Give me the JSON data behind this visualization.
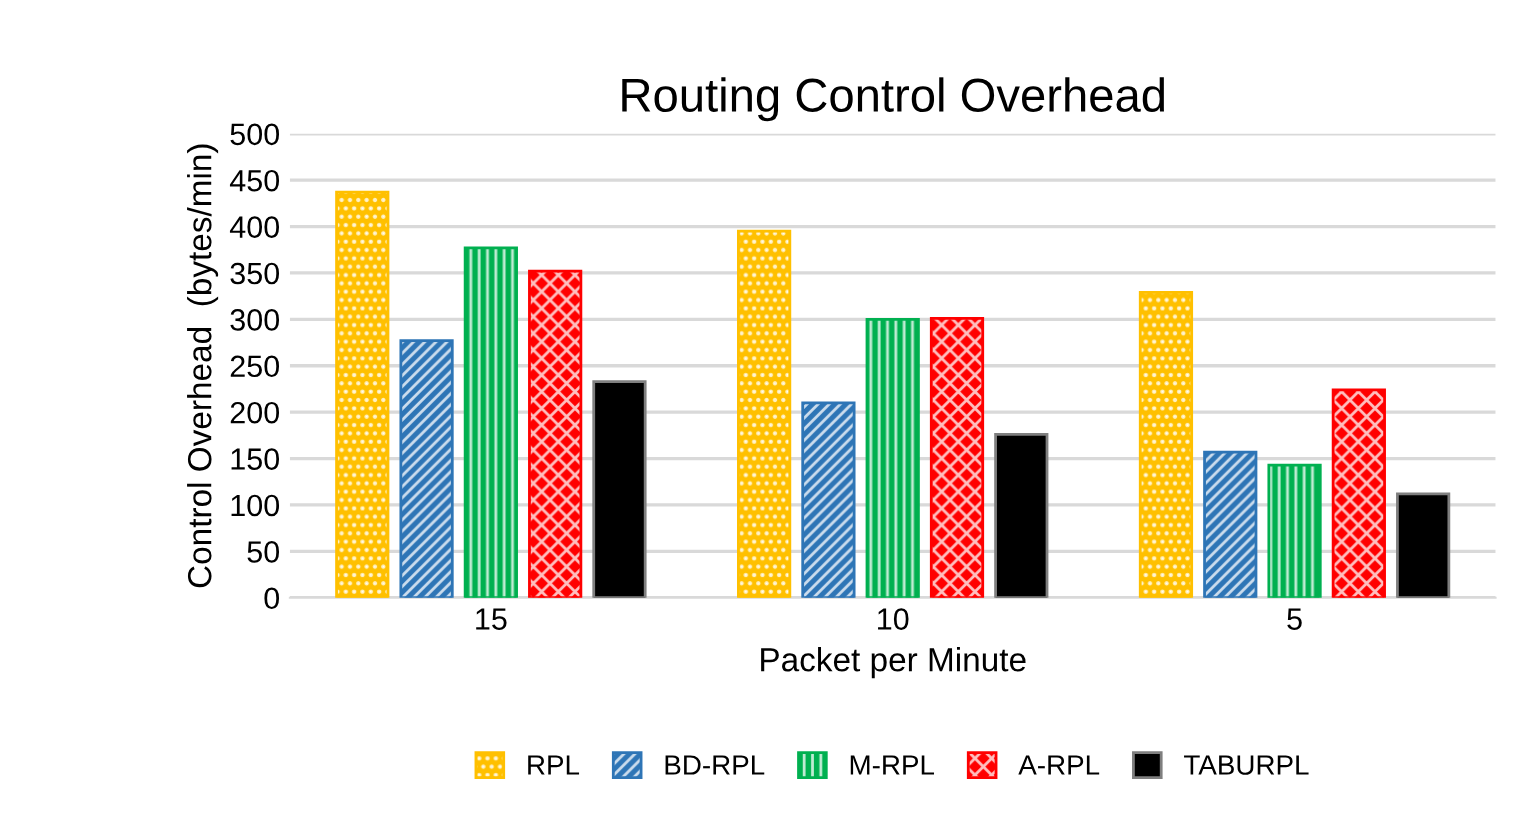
{
  "chart_data": {
    "type": "bar",
    "title": "Routing Control Overhead",
    "xlabel": "Packet per Minute",
    "ylabel": "Control Overhead  (bytes/min)",
    "categories": [
      "15",
      "10",
      "5"
    ],
    "series": [
      {
        "name": "RPL",
        "color": "#ffc000",
        "values": [
          437,
          395,
          329
        ]
      },
      {
        "name": "BD-RPL",
        "color": "#2e75b6",
        "values": [
          277,
          210,
          157
        ]
      },
      {
        "name": "M-RPL",
        "color": "#00b050",
        "values": [
          377,
          300,
          143
        ]
      },
      {
        "name": "A-RPL",
        "color": "#ff0000",
        "values": [
          352,
          301,
          224
        ]
      },
      {
        "name": "TABURPL",
        "color": "#000000",
        "values": [
          233,
          176,
          112
        ]
      }
    ],
    "ylim": [
      0,
      500
    ],
    "yticks": [
      0,
      50,
      100,
      150,
      200,
      250,
      300,
      350,
      400,
      450,
      500
    ],
    "grid": "y",
    "legend": "bottom"
  }
}
